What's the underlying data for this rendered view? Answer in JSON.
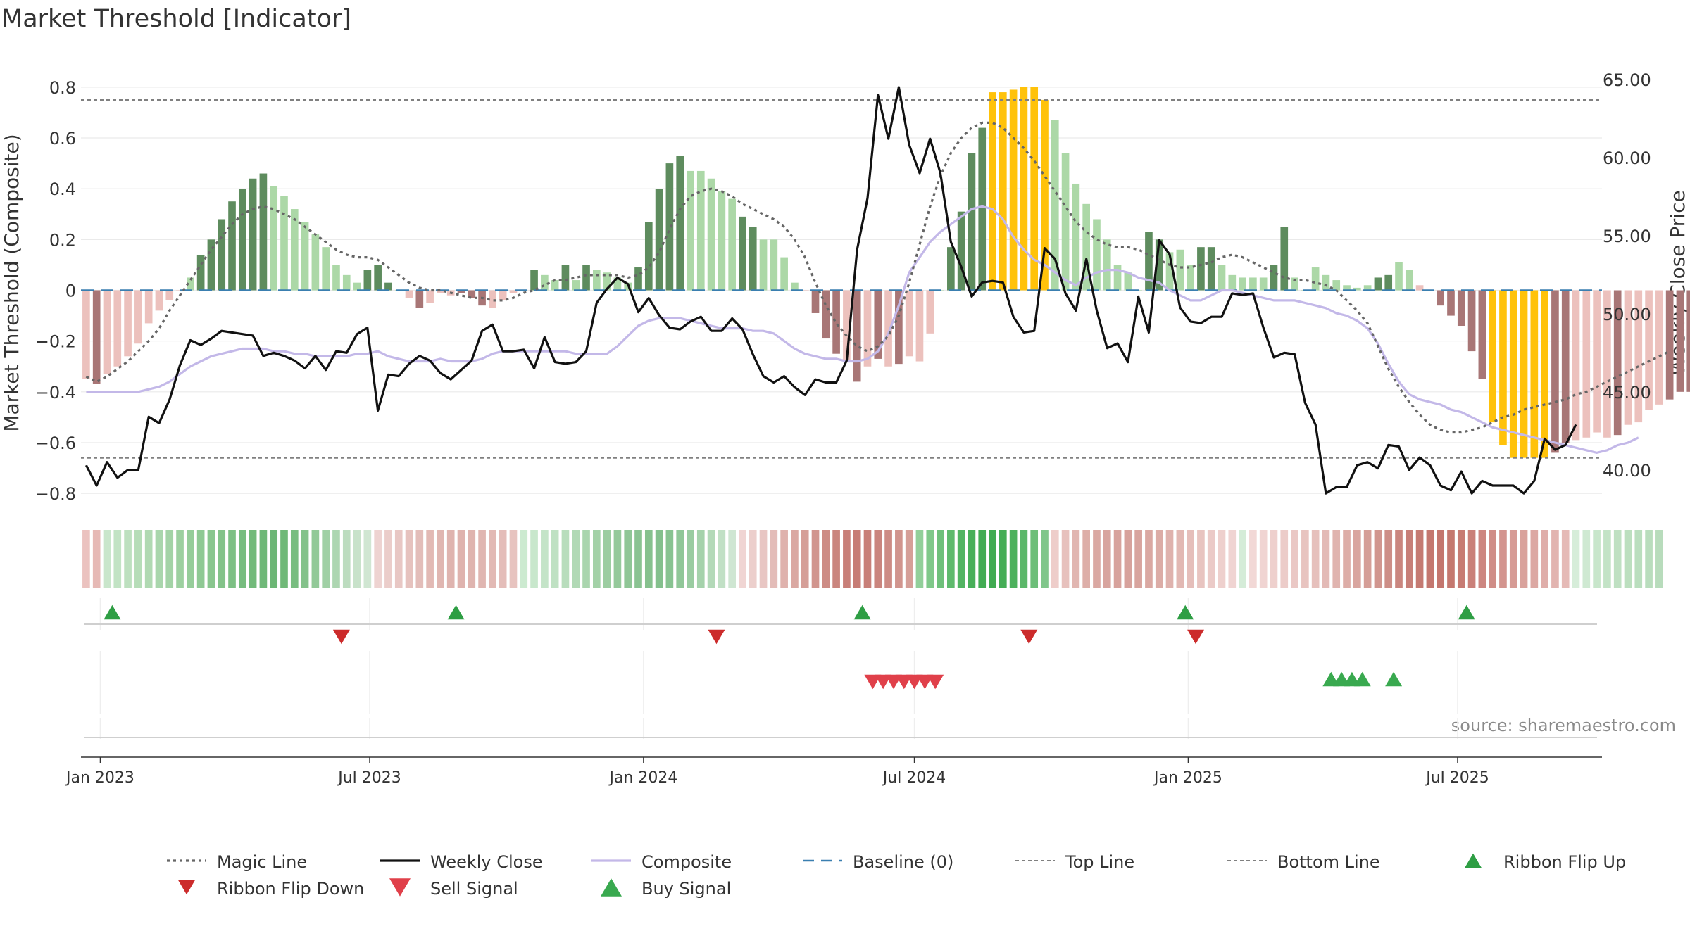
{
  "chart_data": {
    "type": "bar",
    "title": "Market Threshold [Indicator]",
    "ylabel_left": "Market Threshold (Composite)",
    "ylabel_right": "Weekly Close Price",
    "left_ylim": [
      -0.88,
      0.88
    ],
    "right_ylim": [
      37.2,
      65.8
    ],
    "left_ticks": [
      0.8,
      0.6,
      0.4,
      0.2,
      0,
      -0.2,
      -0.4,
      -0.6,
      -0.8
    ],
    "left_tick_labels": [
      "0.8",
      "0.6",
      "0.4",
      "0.2",
      "0",
      "−0.2",
      "−0.4",
      "−0.6",
      "−0.8"
    ],
    "right_ticks": [
      65,
      60,
      55,
      50,
      45,
      40
    ],
    "right_tick_labels": [
      "65.00",
      "60.00",
      "55.00",
      "50.00",
      "45.00",
      "40.00"
    ],
    "x_range": [
      "2022-12-19",
      "2025-10-06"
    ],
    "x_ticks": [
      {
        "date": "2023-01-01",
        "label": "Jan 2023"
      },
      {
        "date": "2023-07-01",
        "label": "Jul 2023"
      },
      {
        "date": "2024-01-01",
        "label": "Jan 2024"
      },
      {
        "date": "2024-07-01",
        "label": "Jul 2024"
      },
      {
        "date": "2025-01-01",
        "label": "Jan 2025"
      },
      {
        "date": "2025-07-01",
        "label": "Jul 2025"
      }
    ],
    "week_start": "2022-12-19",
    "top_line": 0.75,
    "bottom_line": -0.66,
    "baseline": 0,
    "composite_bars": [
      -0.35,
      -0.37,
      -0.33,
      -0.3,
      -0.26,
      -0.21,
      -0.13,
      -0.08,
      -0.04,
      0.0,
      0.05,
      0.14,
      0.2,
      0.28,
      0.35,
      0.4,
      0.44,
      0.46,
      0.41,
      0.37,
      0.32,
      0.27,
      0.22,
      0.17,
      0.1,
      0.06,
      0.03,
      0.08,
      0.1,
      0.03,
      0.0,
      -0.03,
      -0.07,
      -0.05,
      -0.01,
      -0.02,
      -0.01,
      -0.03,
      -0.06,
      -0.07,
      -0.04,
      -0.01,
      0.0,
      0.08,
      0.06,
      0.04,
      0.1,
      0.04,
      0.1,
      0.08,
      0.07,
      0.05,
      0.03,
      0.09,
      0.27,
      0.4,
      0.5,
      0.53,
      0.47,
      0.47,
      0.44,
      0.39,
      0.36,
      0.29,
      0.25,
      0.2,
      0.2,
      0.13,
      0.03,
      0.0,
      -0.09,
      -0.19,
      -0.25,
      -0.28,
      -0.36,
      -0.3,
      -0.27,
      -0.3,
      -0.29,
      -0.26,
      -0.28,
      -0.17,
      0.0,
      0.17,
      0.31,
      0.54,
      0.64,
      0.78,
      0.78,
      0.79,
      0.8,
      0.8,
      0.75,
      0.67,
      0.54,
      0.42,
      0.34,
      0.28,
      0.2,
      0.1,
      0.07,
      0.0,
      0.23,
      0.2,
      0.15,
      0.16,
      0.1,
      0.17,
      0.17,
      0.1,
      0.06,
      0.05,
      0.05,
      0.05,
      0.1,
      0.25,
      0.05,
      0.0,
      0.09,
      0.06,
      0.04,
      0.02,
      0.01,
      0.02,
      0.05,
      0.06,
      0.11,
      0.08,
      0.02,
      0.0,
      -0.06,
      -0.1,
      -0.14,
      -0.24,
      -0.35,
      -0.52,
      -0.61,
      -0.66,
      -0.66,
      -0.66,
      -0.66,
      -0.64,
      -0.6,
      -0.59,
      -0.58,
      -0.56,
      -0.58,
      -0.57,
      -0.53,
      -0.52,
      -0.47,
      -0.45,
      -0.43,
      -0.4,
      -0.4,
      -0.41,
      -0.43,
      -0.47,
      -0.42,
      -0.36,
      -0.3,
      -0.26,
      -0.19
    ],
    "magic_line": [
      -0.34,
      -0.36,
      -0.34,
      -0.31,
      -0.28,
      -0.24,
      -0.2,
      -0.15,
      -0.08,
      -0.02,
      0.04,
      0.1,
      0.16,
      0.21,
      0.26,
      0.3,
      0.32,
      0.33,
      0.32,
      0.3,
      0.28,
      0.25,
      0.22,
      0.19,
      0.16,
      0.14,
      0.13,
      0.13,
      0.12,
      0.09,
      0.06,
      0.03,
      0.01,
      0.0,
      0.0,
      -0.01,
      -0.02,
      -0.03,
      -0.03,
      -0.04,
      -0.04,
      -0.03,
      -0.01,
      0.0,
      0.02,
      0.04,
      0.04,
      0.05,
      0.06,
      0.06,
      0.06,
      0.06,
      0.05,
      0.06,
      0.09,
      0.15,
      0.24,
      0.32,
      0.37,
      0.39,
      0.4,
      0.39,
      0.37,
      0.34,
      0.32,
      0.3,
      0.28,
      0.25,
      0.2,
      0.13,
      0.03,
      -0.06,
      -0.13,
      -0.18,
      -0.22,
      -0.24,
      -0.22,
      -0.18,
      -0.1,
      0.03,
      0.18,
      0.33,
      0.45,
      0.54,
      0.6,
      0.64,
      0.66,
      0.66,
      0.64,
      0.6,
      0.56,
      0.51,
      0.45,
      0.39,
      0.33,
      0.27,
      0.23,
      0.2,
      0.18,
      0.17,
      0.17,
      0.16,
      0.14,
      0.12,
      0.1,
      0.09,
      0.09,
      0.1,
      0.11,
      0.13,
      0.14,
      0.13,
      0.11,
      0.09,
      0.07,
      0.05,
      0.04,
      0.04,
      0.03,
      0.02,
      0.0,
      -0.04,
      -0.08,
      -0.13,
      -0.22,
      -0.31,
      -0.38,
      -0.44,
      -0.49,
      -0.53,
      -0.55,
      -0.56,
      -0.56,
      -0.55,
      -0.54,
      -0.52,
      -0.5,
      -0.49,
      -0.47,
      -0.46,
      -0.45,
      -0.44,
      -0.43,
      -0.41,
      -0.4,
      -0.38,
      -0.36,
      -0.34,
      -0.32,
      -0.3,
      -0.28,
      -0.26,
      -0.24
    ],
    "magic_line_start_week": 0,
    "weekly_close": [
      40.3,
      39.0,
      40.5,
      39.5,
      40.0,
      40.0,
      43.4,
      43.0,
      44.5,
      46.7,
      48.3,
      48.0,
      48.4,
      48.9,
      48.8,
      48.7,
      48.6,
      47.3,
      47.5,
      47.3,
      47.0,
      46.5,
      47.3,
      46.4,
      47.6,
      47.5,
      48.7,
      49.1,
      43.8,
      46.1,
      46.0,
      46.8,
      47.3,
      47.0,
      46.2,
      45.8,
      46.4,
      47.0,
      48.9,
      49.3,
      47.6,
      47.6,
      47.7,
      46.5,
      48.5,
      46.9,
      46.8,
      46.9,
      47.6,
      50.7,
      51.6,
      52.3,
      51.9,
      50.1,
      51.0,
      49.9,
      49.1,
      49.0,
      49.5,
      49.8,
      48.9,
      48.9,
      49.7,
      49.0,
      47.4,
      46.0,
      45.6,
      46.0,
      45.3,
      44.8,
      45.8,
      45.6,
      45.6,
      47.0,
      54.1,
      57.4,
      64.0,
      61.2,
      64.5,
      60.8,
      59.0,
      61.2,
      59.0,
      54.6,
      53.0,
      51.1,
      52.0,
      52.1,
      52.0,
      49.8,
      48.8,
      48.9,
      54.2,
      53.5,
      51.3,
      50.2,
      53.5,
      50.2,
      47.8,
      48.1,
      46.9,
      51.1,
      48.8,
      54.7,
      53.8,
      50.4,
      49.5,
      49.4,
      49.8,
      49.8,
      51.3,
      51.2,
      51.3,
      49.1,
      47.2,
      47.5,
      47.4,
      44.3,
      42.9,
      38.5,
      38.9,
      38.9,
      40.3,
      40.5,
      40.1,
      41.6,
      41.5,
      40.0,
      40.8,
      40.3,
      39.0,
      38.7,
      39.9,
      38.5,
      39.3,
      39.0,
      39.0,
      39.0,
      38.5,
      39.3,
      42.0,
      41.3,
      41.6,
      42.9
    ],
    "composite_line": [
      -0.4,
      -0.4,
      -0.4,
      -0.4,
      -0.4,
      -0.4,
      -0.39,
      -0.38,
      -0.36,
      -0.33,
      -0.3,
      -0.28,
      -0.26,
      -0.25,
      -0.24,
      -0.23,
      -0.23,
      -0.23,
      -0.24,
      -0.24,
      -0.25,
      -0.25,
      -0.26,
      -0.26,
      -0.26,
      -0.26,
      -0.25,
      -0.25,
      -0.24,
      -0.26,
      -0.27,
      -0.28,
      -0.28,
      -0.28,
      -0.27,
      -0.28,
      -0.28,
      -0.28,
      -0.27,
      -0.25,
      -0.24,
      -0.24,
      -0.24,
      -0.24,
      -0.24,
      -0.24,
      -0.24,
      -0.25,
      -0.25,
      -0.25,
      -0.25,
      -0.22,
      -0.18,
      -0.14,
      -0.12,
      -0.11,
      -0.11,
      -0.11,
      -0.12,
      -0.13,
      -0.14,
      -0.15,
      -0.15,
      -0.15,
      -0.16,
      -0.16,
      -0.17,
      -0.2,
      -0.23,
      -0.25,
      -0.26,
      -0.27,
      -0.27,
      -0.28,
      -0.28,
      -0.27,
      -0.24,
      -0.17,
      -0.06,
      0.07,
      0.13,
      0.19,
      0.23,
      0.26,
      0.29,
      0.32,
      0.33,
      0.32,
      0.28,
      0.21,
      0.16,
      0.12,
      0.1,
      0.07,
      0.04,
      0.02,
      0.05,
      0.07,
      0.08,
      0.08,
      0.07,
      0.05,
      0.04,
      0.03,
      0.0,
      -0.02,
      -0.04,
      -0.04,
      -0.02,
      0.0,
      0.0,
      -0.01,
      -0.02,
      -0.03,
      -0.04,
      -0.04,
      -0.04,
      -0.05,
      -0.06,
      -0.07,
      -0.09,
      -0.1,
      -0.12,
      -0.15,
      -0.21,
      -0.29,
      -0.36,
      -0.41,
      -0.43,
      -0.44,
      -0.45,
      -0.47,
      -0.48,
      -0.5,
      -0.52,
      -0.54,
      -0.55,
      -0.56,
      -0.57,
      -0.58,
      -0.59,
      -0.6,
      -0.61,
      -0.62,
      -0.63,
      -0.64,
      -0.63,
      -0.61,
      -0.6,
      -0.58
    ],
    "composite_line_start_week": 0,
    "bar_colors": {
      "strong_up": "#5e8c5e",
      "weak_up": "#acd8a7",
      "strong_down": "#a87676",
      "weak_down": "#ecc1bd",
      "extreme": "#ffc20a"
    },
    "bar_classes": [
      "wd",
      "sd",
      "wd",
      "wd",
      "wd",
      "wd",
      "wd",
      "wd",
      "wd",
      "wd",
      "wu",
      "su",
      "su",
      "su",
      "su",
      "su",
      "su",
      "su",
      "wu",
      "wu",
      "wu",
      "wu",
      "wu",
      "wu",
      "wu",
      "wu",
      "wu",
      "su",
      "su",
      "su",
      "wu",
      "wd",
      "sd",
      "wd",
      "wd",
      "wd",
      "sd",
      "sd",
      "sd",
      "wd",
      "wd",
      "wd",
      "wu",
      "su",
      "wu",
      "wu",
      "su",
      "wu",
      "su",
      "wu",
      "wu",
      "wu",
      "wu",
      "su",
      "su",
      "su",
      "su",
      "su",
      "wu",
      "wu",
      "wu",
      "wu",
      "wu",
      "su",
      "su",
      "wu",
      "wu",
      "wu",
      "wu",
      "wd",
      "sd",
      "sd",
      "sd",
      "wd",
      "sd",
      "wd",
      "sd",
      "wd",
      "sd",
      "wd",
      "wd",
      "wd",
      "wu",
      "su",
      "su",
      "su",
      "su",
      "ex",
      "ex",
      "ex",
      "ex",
      "ex",
      "ex",
      "wu",
      "wu",
      "wu",
      "wu",
      "wu",
      "wu",
      "wu",
      "wu",
      "wu",
      "su",
      "su",
      "wu",
      "wu",
      "wu",
      "su",
      "su",
      "wu",
      "wu",
      "wu",
      "wu",
      "wu",
      "su",
      "su",
      "wu",
      "wu",
      "wu",
      "wu",
      "wu",
      "wu",
      "wu",
      "wu",
      "su",
      "su",
      "wu",
      "wu",
      "wd",
      "wd",
      "sd",
      "sd",
      "sd",
      "sd",
      "sd",
      "ex",
      "ex",
      "ex",
      "ex",
      "ex",
      "ex",
      "sd",
      "sd",
      "wd",
      "wd",
      "wd",
      "wd",
      "sd",
      "wd",
      "wd",
      "wd",
      "wd",
      "sd",
      "sd",
      "sd",
      "wd",
      "wd",
      "wd",
      "wd",
      "wd"
    ],
    "ribbon": [
      "#ebc2bf",
      "#e6b9b5",
      "#c9e6cb",
      "#c2e3c4",
      "#bde0bf",
      "#b6ddb8",
      "#b0d9b2",
      "#a9d6ac",
      "#a3d3a6",
      "#9dd0a0",
      "#96cd9a",
      "#8fc994",
      "#89c68e",
      "#83c389",
      "#7dc084",
      "#77bd7f",
      "#72ba7a",
      "#6fb878",
      "#6cb675",
      "#70b978",
      "#78bd80",
      "#84c28b",
      "#92c998",
      "#a0d0a5",
      "#add6b1",
      "#bcdcbf",
      "#c8e2ca",
      "#d0e6d2",
      "#eed3d1",
      "#ebcdca",
      "#e8c7c4",
      "#e6c2be",
      "#e3bdb9",
      "#e2b9b4",
      "#e0b6b1",
      "#dfb4af",
      "#dfb3ae",
      "#dfb4af",
      "#e0b6b1",
      "#e2b9b4",
      "#e4bdb9",
      "#e7c3bf",
      "#ccead0",
      "#c8e7cc",
      "#c4e4c8",
      "#bfe1c3",
      "#b8ddbc",
      "#b1d9b5",
      "#aad5ae",
      "#a3d1a7",
      "#9ccda1",
      "#95c99b",
      "#8fc696",
      "#8ac392",
      "#86c18e",
      "#84c08d",
      "#88c391",
      "#90c798",
      "#9acca1",
      "#a5d2ab",
      "#b3d9b8",
      "#c1e0c5",
      "#cfe6d2",
      "#f0d5d3",
      "#eccfcc",
      "#e8c6c3",
      "#e3bcb8",
      "#dfb2ad",
      "#daa8a2",
      "#d59f98",
      "#d1958e",
      "#cd8c85",
      "#ca857e",
      "#c87f78",
      "#c77c75",
      "#c87f78",
      "#ca857e",
      "#cd8c85",
      "#d1958e",
      "#d59f98",
      "#92cf9a",
      "#80c88a",
      "#6fc07b",
      "#5fba6d",
      "#52b462",
      "#48af59",
      "#42ac53",
      "#40ab51",
      "#44ad55",
      "#4db15d",
      "#5bb769",
      "#6dbe79",
      "#80c68b",
      "#eecdca",
      "#e7c1bd",
      "#e1b6b1",
      "#ddaea8",
      "#daa8a2",
      "#d8a49e",
      "#d7a29c",
      "#d7a29c",
      "#d8a49e",
      "#daa8a2",
      "#dcaca6",
      "#dfb2ad",
      "#e2b8b3",
      "#e5beba",
      "#e8c4c0",
      "#ebcac7",
      "#eed0cd",
      "#f0d4d2",
      "#d5ecd8",
      "#f2d8d6",
      "#f0d4d2",
      "#eed0cd",
      "#ecccc9",
      "#eac8c5",
      "#e8c4c0",
      "#e6c0bc",
      "#e3bab6",
      "#e0b4af",
      "#ddada7",
      "#d9a59f",
      "#d59e97",
      "#d1968f",
      "#cd8e87",
      "#ca867f",
      "#c77f78",
      "#c57a72",
      "#c4776f",
      "#c4766e",
      "#c5786f",
      "#c77b73",
      "#ca8079",
      "#cd8680",
      "#d08d87",
      "#d3948e",
      "#d69b95",
      "#d9a29c",
      "#dca8a3",
      "#dfaeaa",
      "#e2b4b0",
      "#e5bab6",
      "#d6edd9",
      "#cfe9d2",
      "#c8e6cb",
      "#c3e3c6",
      "#bfe0c2",
      "#bcdfbf",
      "#badebe",
      "#b9ddbd",
      "#b8dcbc"
    ],
    "ribbon_flip_up": [
      "2023-01-09",
      "2023-08-28",
      "2024-05-27",
      "2024-12-30",
      "2025-07-07"
    ],
    "ribbon_flip_down": [
      "2023-06-12",
      "2024-02-19",
      "2024-09-16",
      "2025-01-06"
    ],
    "sell_signals": [
      "2024-06-03",
      "2024-06-10",
      "2024-06-17",
      "2024-06-24",
      "2024-07-01",
      "2024-07-08",
      "2024-07-15"
    ],
    "buy_signals": [
      "2025-04-07",
      "2025-04-14",
      "2025-04-21",
      "2025-04-28",
      "2025-05-19"
    ],
    "colors": {
      "magic_line": "#666666",
      "weekly_close": "#111111",
      "composite": "#c3b8e8",
      "baseline": "#3a7fb0",
      "ref_line": "#808080",
      "flip_up": "#2e9e44",
      "flip_down": "#cc2b2b",
      "sell": "#e0404a",
      "buy": "#39a94f",
      "grid": "#eaeaea"
    },
    "legend_position": "bottom",
    "legend": [
      {
        "key": "magic",
        "label": "Magic Line"
      },
      {
        "key": "close",
        "label": "Weekly Close"
      },
      {
        "key": "composite",
        "label": "Composite"
      },
      {
        "key": "baseline",
        "label": "Baseline (0)"
      },
      {
        "key": "top",
        "label": "Top Line"
      },
      {
        "key": "bottom",
        "label": "Bottom Line"
      },
      {
        "key": "flipup",
        "label": "Ribbon Flip Up"
      },
      {
        "key": "flipdown",
        "label": "Ribbon Flip Down"
      },
      {
        "key": "sell",
        "label": "Sell Signal"
      },
      {
        "key": "buy",
        "label": "Buy Signal"
      }
    ],
    "source_note": "source: sharemaestro.com"
  }
}
